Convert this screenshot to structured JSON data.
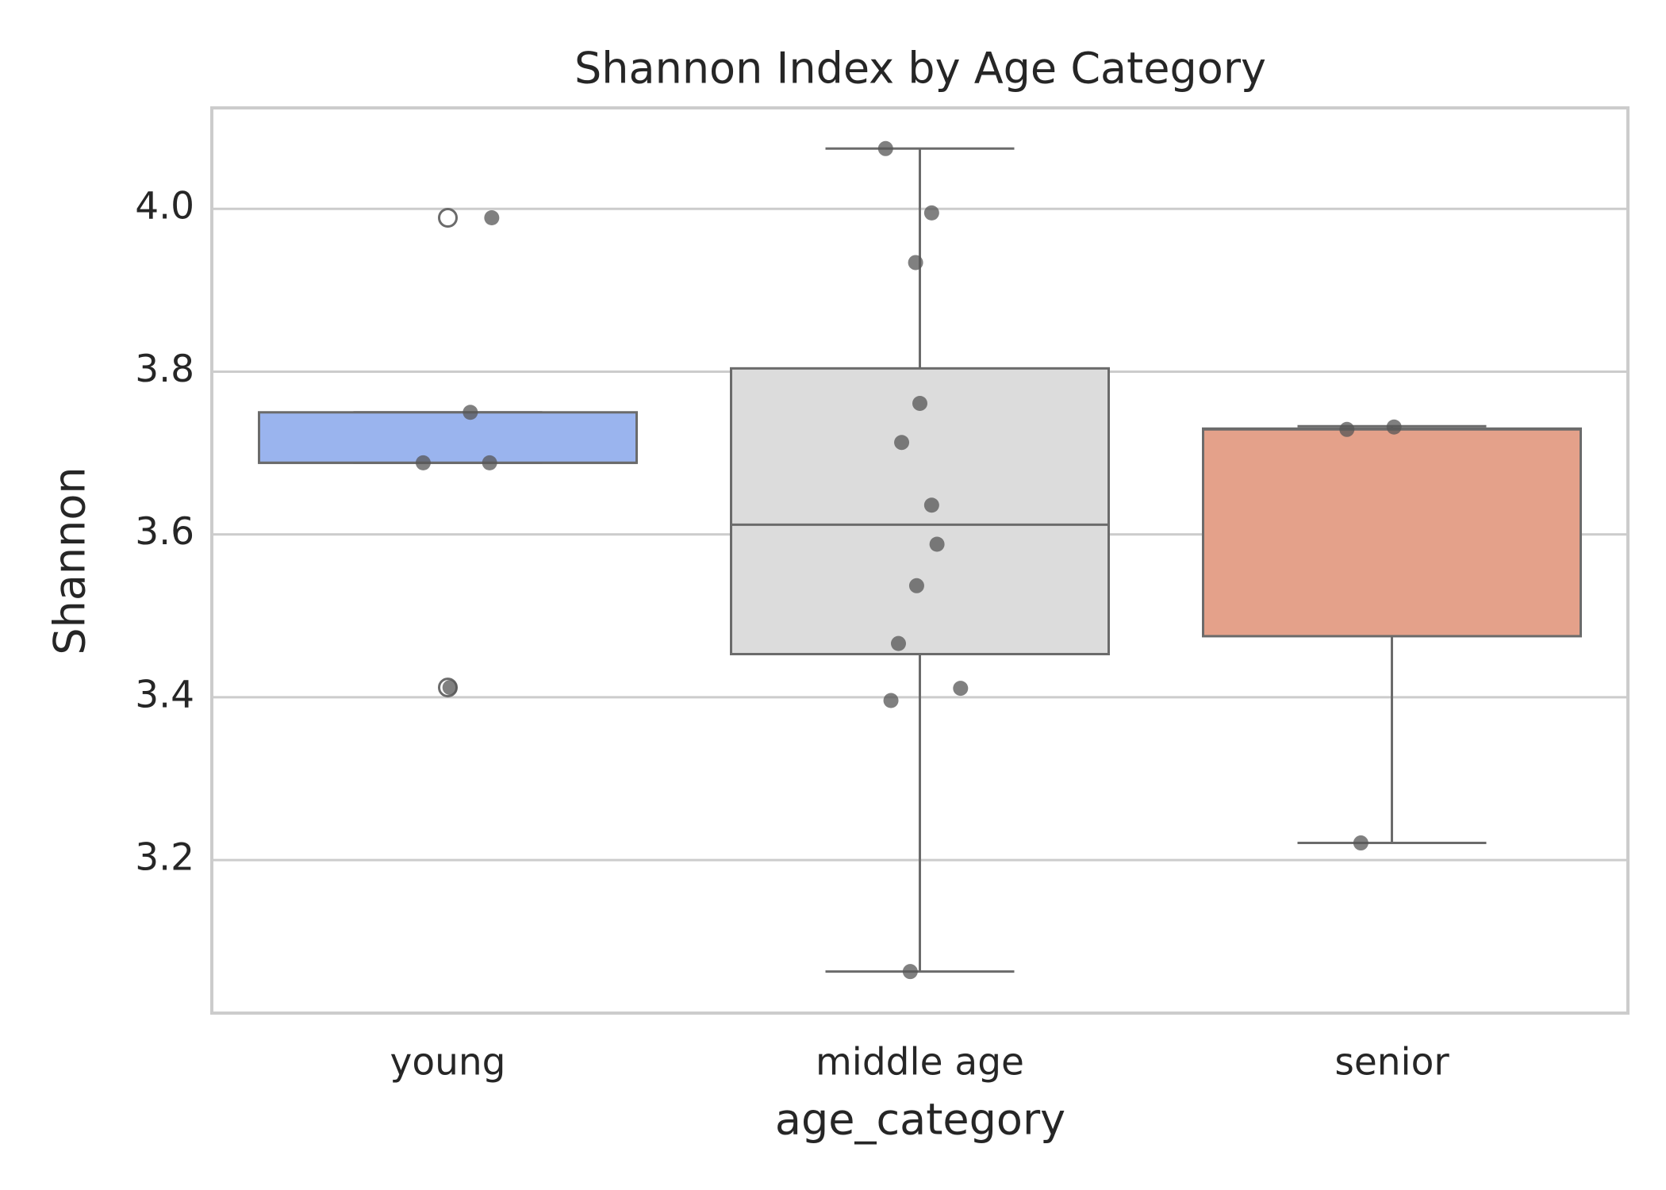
{
  "chart_data": {
    "type": "box",
    "title": "Shannon Index by Age Category",
    "x_label": "age_category",
    "y_label": "Shannon",
    "categories": [
      "young",
      "middle age",
      "senior"
    ],
    "colors": [
      "#9ab4ee",
      "#dcdcdc",
      "#e4a18a"
    ],
    "q1": [
      3.688,
      3.453,
      3.475
    ],
    "median": [
      3.688,
      3.612,
      3.729
    ],
    "q3": [
      3.75,
      3.804,
      3.73
    ],
    "whisker_low": [
      3.688,
      3.063,
      3.221
    ],
    "whisker_high": [
      3.75,
      4.074,
      3.733
    ],
    "outliers": [
      [
        3.989,
        3.412
      ],
      [],
      []
    ],
    "points": [
      [
        3.989,
        3.75,
        3.688,
        3.688,
        3.412
      ],
      [
        4.074,
        3.995,
        3.934,
        3.761,
        3.713,
        3.636,
        3.588,
        3.537,
        3.466,
        3.411,
        3.396,
        3.063
      ],
      [
        3.729,
        3.732,
        3.221
      ]
    ],
    "point_color": "#555555",
    "ylim": [
      3.012,
      4.124
    ],
    "yticks": [
      {
        "value": 3.2,
        "label": "3.2"
      },
      {
        "value": 3.4,
        "label": "3.4"
      },
      {
        "value": 3.6,
        "label": "3.6"
      },
      {
        "value": 3.8,
        "label": "3.8"
      },
      {
        "value": 4.0,
        "label": "4.0"
      }
    ],
    "grid": true
  }
}
